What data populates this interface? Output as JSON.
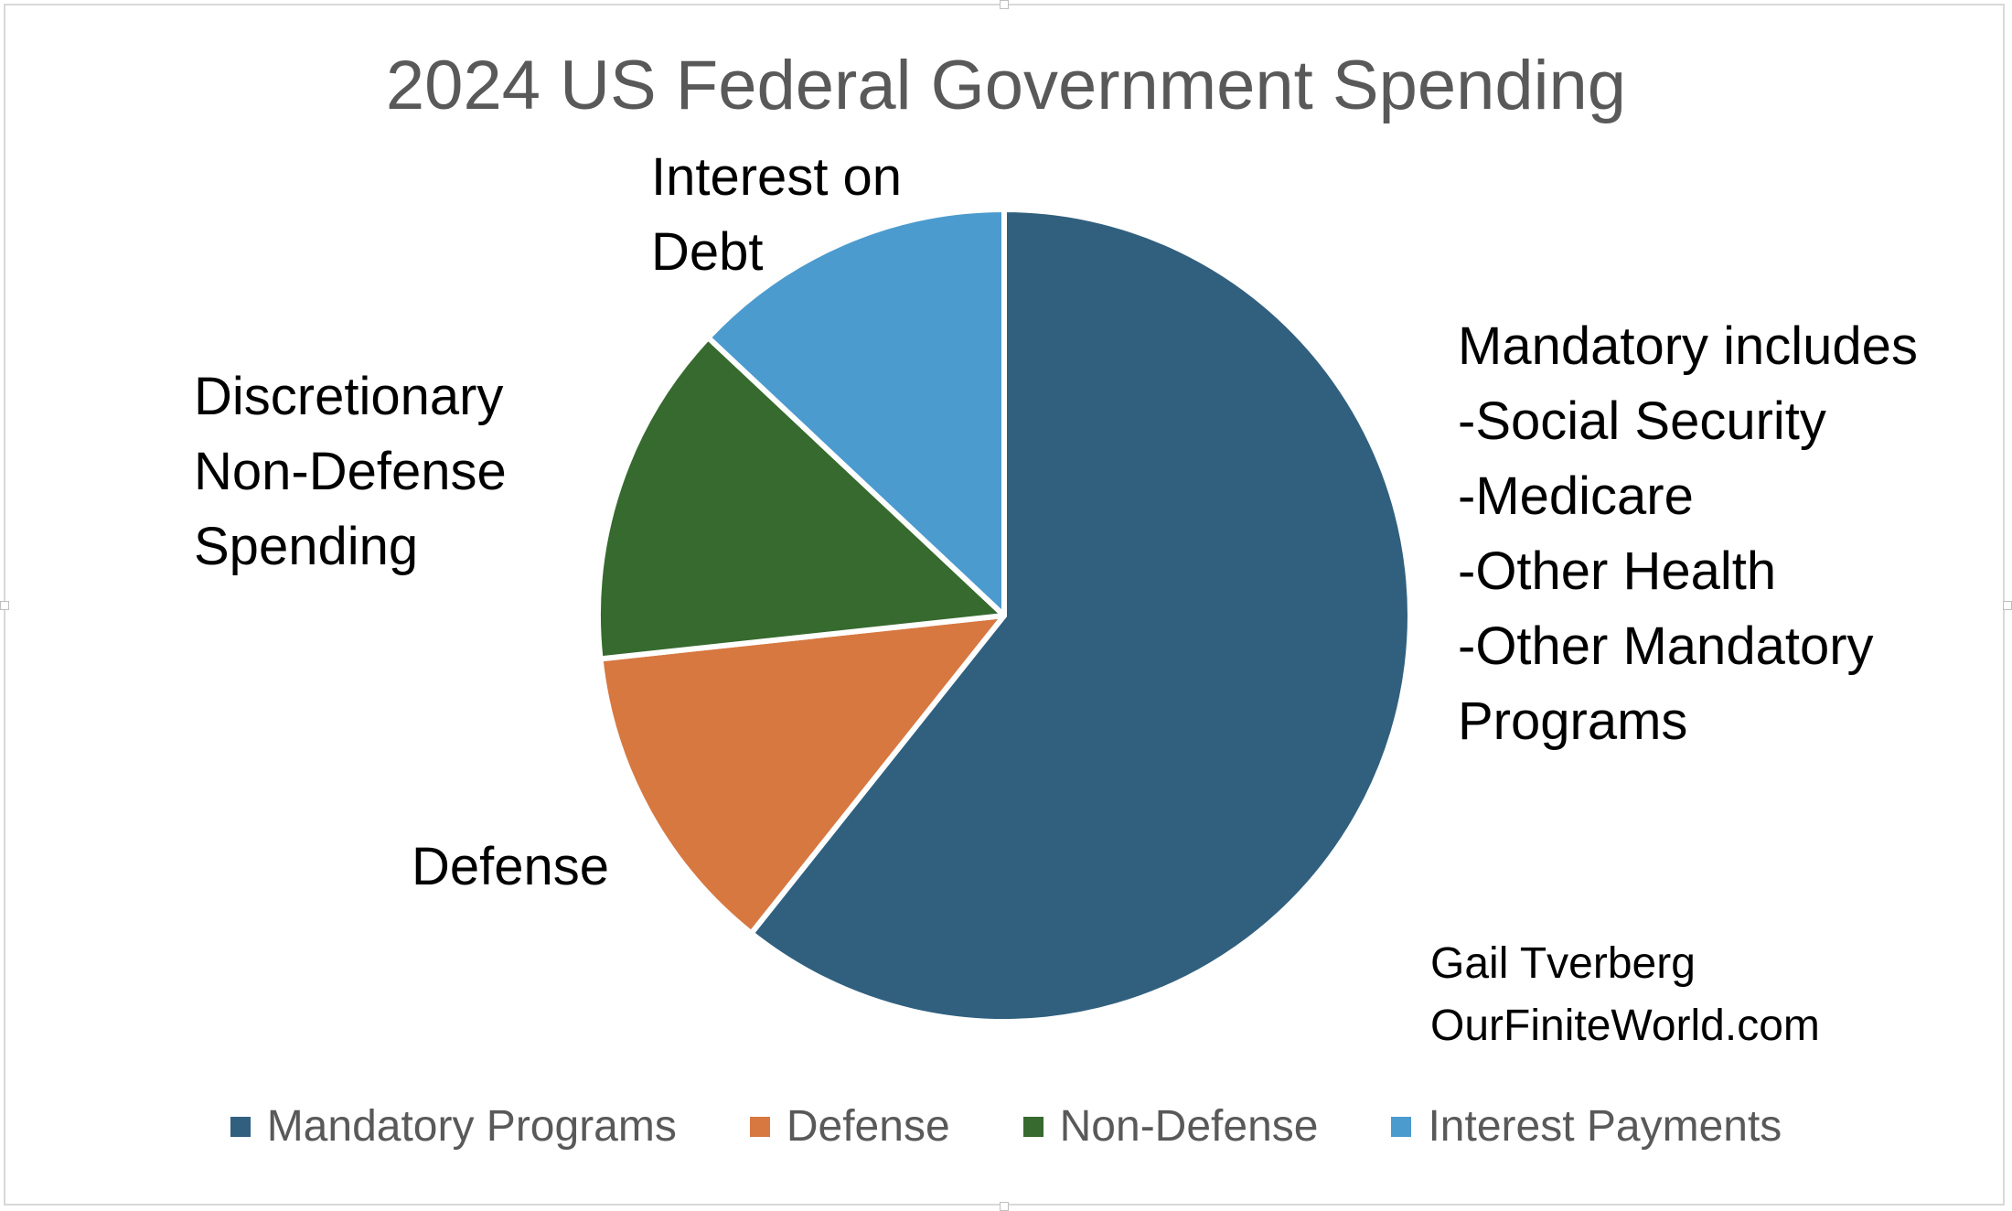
{
  "chart_data": {
    "type": "pie",
    "title": "2024 US Federal Government Spending",
    "slices": [
      {
        "label": "Mandatory Programs",
        "value": 60.7,
        "color": "#31607F"
      },
      {
        "label": "Defense",
        "value": 12.6,
        "color": "#D77841"
      },
      {
        "label": "Non-Defense",
        "value": 13.7,
        "color": "#366A2E"
      },
      {
        "label": "Interest Payments",
        "value": 13.0,
        "color": "#4C9BCF"
      }
    ],
    "start_angle_deg": 0,
    "direction": "clockwise",
    "legend_position": "bottom",
    "annotations": {
      "interest": "Interest on\nDebt",
      "discretionary": "Discretionary\nNon-Defense\nSpending",
      "defense": "Defense",
      "mandatory": "Mandatory includes\n-Social Security\n-Medicare\n-Other Health\n-Other Mandatory\nPrograms"
    },
    "credit": {
      "author": "Gail Tverberg",
      "site": "OurFiniteWorld.com"
    }
  }
}
